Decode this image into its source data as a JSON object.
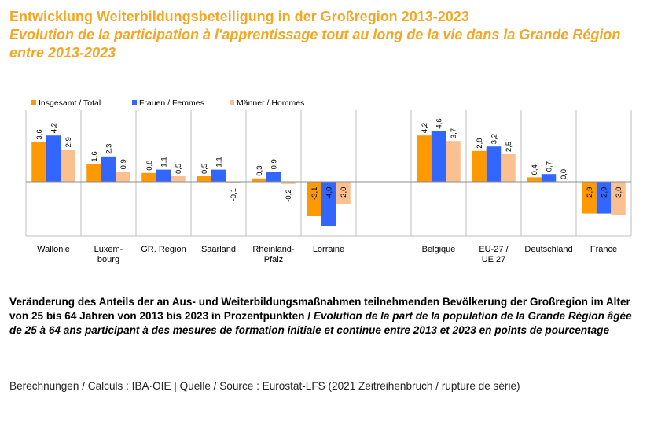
{
  "header": {
    "title_de": "Entwicklung Weiterbildungsbeteiligung in der Großregion 2013-2023",
    "title_fr": "Evolution de la participation à l'apprentissage tout au long de la vie dans la Grande Région entre 2013-2023"
  },
  "caption": {
    "de": "Veränderung des Anteils der an Aus- und Weiterbildungsmaßnahmen teilnehmenden Bevölkerung der Großregion im Alter von 25 bis 64 Jahren von 2013 bis 2023 in Prozentpunkten / ",
    "fr": "Evolution de la part de la population de la Grande Région âgée de 25 à 64 ans participant à des mesures de formation initiale et continue entre 2013 et 2023 en points de pourcentage"
  },
  "source": "Berechnungen / Calculs : IBA·OIE | Quelle / Source : Eurostat-LFS (2021 Zeitreihenbruch / rupture de série)",
  "colors": {
    "total": "#ff9900",
    "women": "#3366ff",
    "men": "#fac090",
    "grid": "#bfbfbf"
  },
  "chart_data": {
    "type": "bar",
    "categories": [
      "Wallonie",
      "Luxem-\nbourg",
      "GR. Region",
      "Saarland",
      "Rheinland-\nPfalz",
      "Lorraine",
      "",
      "Belgique",
      "EU-27 /\nUE 27",
      "Deutschland",
      "France"
    ],
    "series": [
      {
        "name": "Insgesamt / Total",
        "values": [
          3.6,
          1.6,
          0.8,
          0.5,
          0.3,
          -3.1,
          null,
          4.2,
          2.8,
          0.4,
          -2.9
        ],
        "labels": [
          "3,6",
          "1,6",
          "0,8",
          "0,5",
          "0,3",
          "-3,1",
          "",
          "4,2",
          "2,8",
          "0,4",
          "-2,9"
        ]
      },
      {
        "name": "Frauen / Femmes",
        "values": [
          4.2,
          2.3,
          1.1,
          1.1,
          0.9,
          -4.0,
          null,
          4.6,
          3.2,
          0.7,
          -2.9
        ],
        "labels": [
          "4,2",
          "2,3",
          "1,1",
          "1,1",
          "0,9",
          "-4,0",
          "",
          "4,6",
          "3,2",
          "0,7",
          "-2,9"
        ]
      },
      {
        "name": "Männer / Hommes",
        "values": [
          2.9,
          0.9,
          0.5,
          -0.1,
          -0.2,
          -2.0,
          null,
          3.7,
          2.5,
          0.0,
          -3.0
        ],
        "labels": [
          "2,9",
          "0,9",
          "0,5",
          "-0,1",
          "-0,2",
          "-2,0",
          "",
          "3,7",
          "2,5",
          "0,0",
          "-3,0"
        ]
      }
    ],
    "legend_position": "top-left",
    "grid": false
  }
}
